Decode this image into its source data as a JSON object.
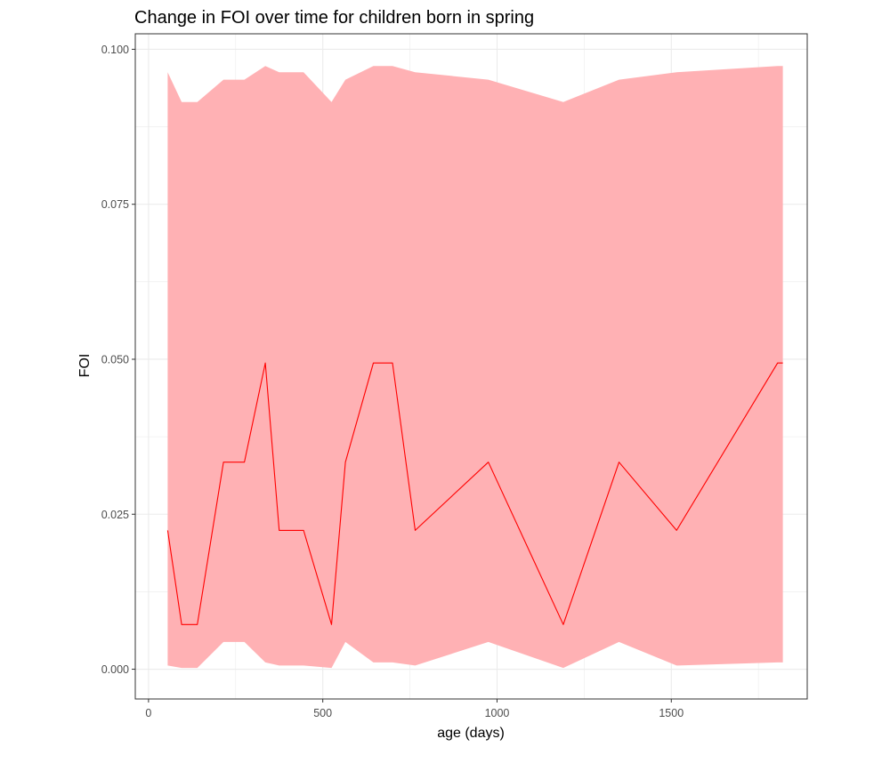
{
  "chart_data": {
    "type": "line",
    "title": "Change in FOI over time for children born in spring",
    "xlabel": "age (days)",
    "ylabel": "FOI",
    "xlim": [
      -38,
      1890
    ],
    "ylim": [
      -0.0048,
      0.1025
    ],
    "x_ticks": [
      0,
      500,
      1000,
      1500
    ],
    "x_tick_labels": [
      "0",
      "500",
      "1000",
      "1500"
    ],
    "y_ticks": [
      0.0,
      0.025,
      0.05,
      0.075,
      0.1
    ],
    "y_tick_labels": [
      "0.000",
      "0.025",
      "0.050",
      "0.075",
      "0.100"
    ],
    "grid": true,
    "legend": "none",
    "colors": {
      "line": "#ff0000",
      "ribbon": "#ffb1b4",
      "grid": "#ebebeb",
      "panel_border": "#333333",
      "tick_label": "#4d4d4d"
    },
    "series": [
      {
        "x": [
          55,
          95,
          140,
          215,
          275,
          335,
          375,
          445,
          525,
          565,
          645,
          700,
          765,
          975,
          1190,
          1350,
          1515,
          1805,
          1820
        ],
        "y": [
          0.0224,
          0.0072,
          0.0072,
          0.0334,
          0.0334,
          0.0494,
          0.0224,
          0.0224,
          0.0072,
          0.0334,
          0.0494,
          0.0494,
          0.0224,
          0.0334,
          0.0072,
          0.0334,
          0.0224,
          0.0494,
          0.0494
        ],
        "lower": [
          0.0006,
          0.0002,
          0.0002,
          0.0044,
          0.0044,
          0.0011,
          0.0006,
          0.0006,
          0.0002,
          0.0044,
          0.0011,
          0.0011,
          0.0006,
          0.0044,
          0.0002,
          0.0044,
          0.0006,
          0.0011,
          0.0011
        ],
        "upper": [
          0.0963,
          0.0915,
          0.0915,
          0.0951,
          0.0951,
          0.0973,
          0.0963,
          0.0963,
          0.0915,
          0.0951,
          0.0973,
          0.0973,
          0.0963,
          0.0951,
          0.0915,
          0.0951,
          0.0963,
          0.0973,
          0.0973
        ]
      }
    ]
  }
}
